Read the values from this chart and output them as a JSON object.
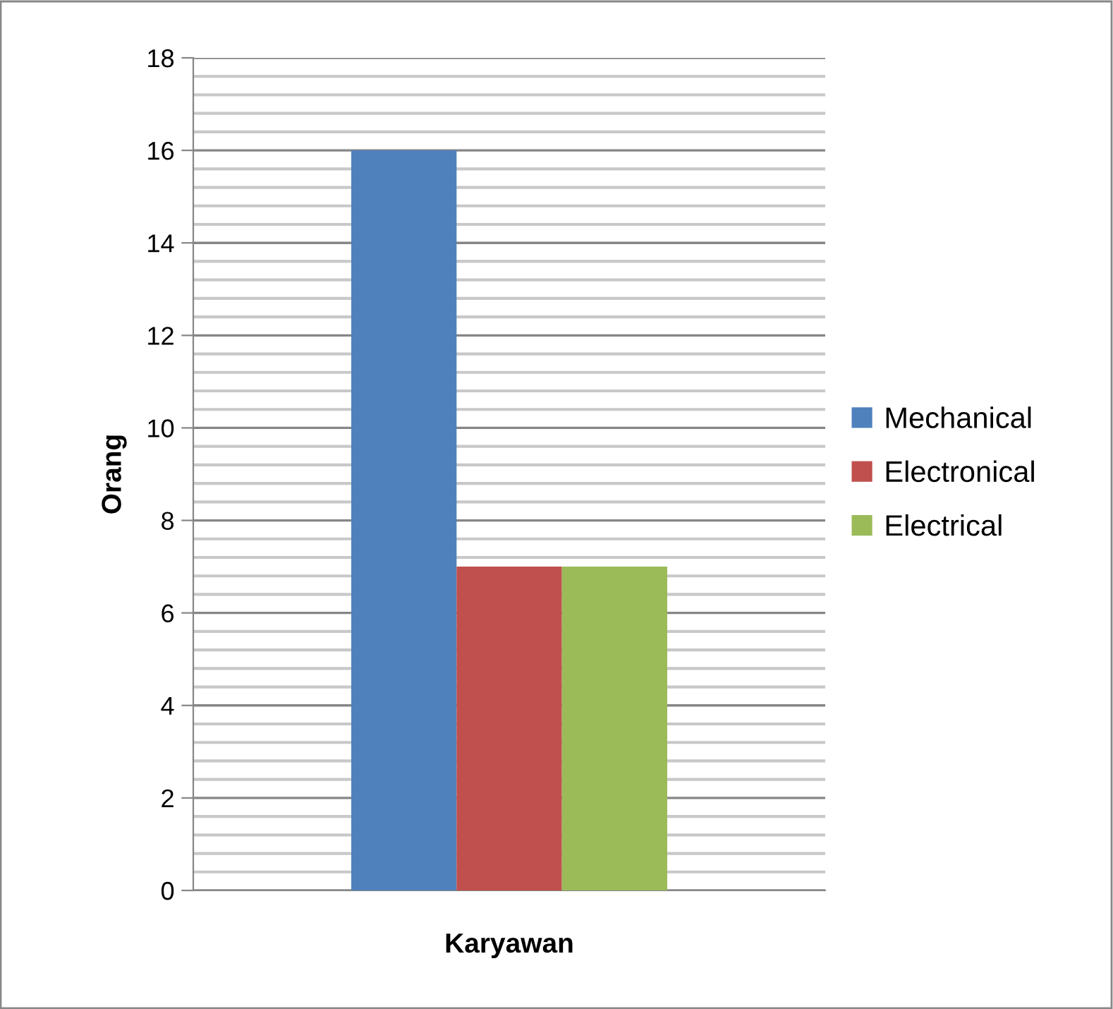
{
  "chart_data": {
    "type": "bar",
    "xlabel": "Karyawan",
    "ylabel": "Orang",
    "categories": [
      null
    ],
    "series": [
      {
        "name": "Mechanical",
        "color": "#4f81bd",
        "values": [
          16
        ]
      },
      {
        "name": "Electronical",
        "color": "#c0504d",
        "values": [
          7
        ]
      },
      {
        "name": "Electrical",
        "color": "#9bbb59",
        "values": [
          7
        ]
      }
    ],
    "ylim": [
      0,
      18
    ],
    "yticks": [
      0,
      2,
      4,
      6,
      8,
      10,
      12,
      14,
      16,
      18
    ],
    "grid": "y",
    "legend": "right"
  }
}
